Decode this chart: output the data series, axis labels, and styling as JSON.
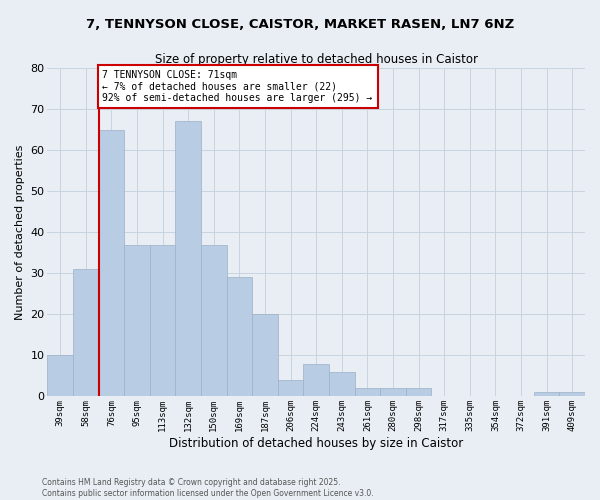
{
  "title1": "7, TENNYSON CLOSE, CAISTOR, MARKET RASEN, LN7 6NZ",
  "title2": "Size of property relative to detached houses in Caistor",
  "xlabel": "Distribution of detached houses by size in Caistor",
  "ylabel": "Number of detached properties",
  "categories": [
    "39sqm",
    "58sqm",
    "76sqm",
    "95sqm",
    "113sqm",
    "132sqm",
    "150sqm",
    "169sqm",
    "187sqm",
    "206sqm",
    "224sqm",
    "243sqm",
    "261sqm",
    "280sqm",
    "298sqm",
    "317sqm",
    "335sqm",
    "354sqm",
    "372sqm",
    "391sqm",
    "409sqm"
  ],
  "values": [
    10,
    31,
    65,
    37,
    37,
    67,
    37,
    29,
    20,
    4,
    8,
    6,
    2,
    2,
    2,
    0,
    0,
    0,
    0,
    1,
    1
  ],
  "bar_color": "#b8cce4",
  "bar_edge_color": "#9eb0c8",
  "vline_color": "#cc0000",
  "annotation_text": "7 TENNYSON CLOSE: 71sqm\n← 7% of detached houses are smaller (22)\n92% of semi-detached houses are larger (295) →",
  "annotation_box_color": "#ffffff",
  "annotation_box_edge_color": "#cc0000",
  "ylim": [
    0,
    80
  ],
  "yticks": [
    0,
    10,
    20,
    30,
    40,
    50,
    60,
    70,
    80
  ],
  "grid_color": "#c8d4e0",
  "bg_color": "#e8eef4",
  "footer": "Contains HM Land Registry data © Crown copyright and database right 2025.\nContains public sector information licensed under the Open Government Licence v3.0."
}
